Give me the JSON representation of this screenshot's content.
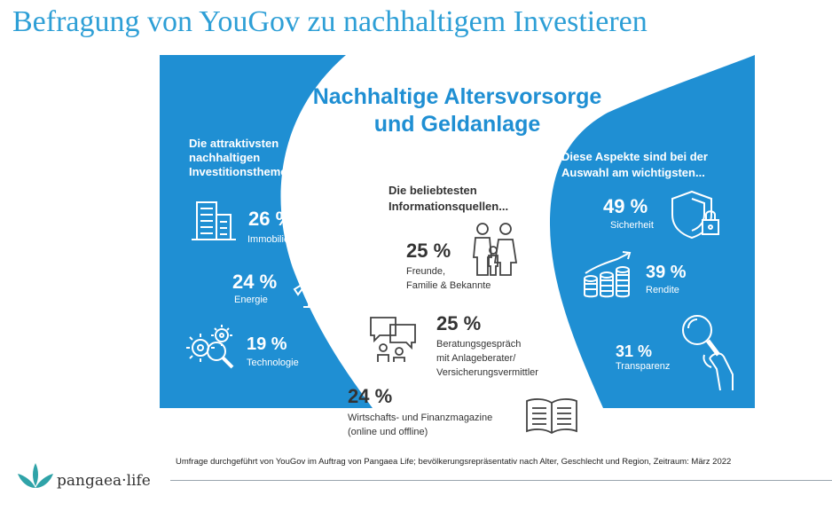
{
  "slide_title": "Befragung von YouGov zu nachhaltigem Investieren",
  "headline": {
    "line1": "Nachhaltige Altersvorsorge",
    "line2": "und Geldanlage"
  },
  "left": {
    "heading": [
      "Die attraktivsten",
      "nachhaltigen",
      "Investitionsthemen..."
    ],
    "items": [
      {
        "value": "26 %",
        "label": "Immobilien",
        "icon": "building-icon"
      },
      {
        "value": "24 %",
        "label": "Energie",
        "icon": "wind-turbine-icon"
      },
      {
        "value": "19 %",
        "label": "Technologie",
        "icon": "gears-magnifier-icon"
      }
    ]
  },
  "center": {
    "heading": [
      "Die beliebtesten",
      "Informationsquellen..."
    ],
    "items": [
      {
        "value": "25 %",
        "label_lines": [
          "Freunde,",
          "Familie & Bekannte"
        ],
        "icon": "family-icon"
      },
      {
        "value": "25 %",
        "label_lines": [
          "Beratungsgespräch",
          "mit Anlageberater/",
          "Versicherungsvermittler"
        ],
        "icon": "chat-people-icon"
      },
      {
        "value": "24 %",
        "label_lines": [
          "Wirtschafts- und Finanzmagazine",
          "(online und offline)"
        ],
        "icon": "open-book-icon"
      }
    ]
  },
  "right": {
    "heading": [
      "Diese Aspekte sind bei der",
      "Auswahl am wichtigsten..."
    ],
    "items": [
      {
        "value": "49 %",
        "label": "Sicherheit",
        "icon": "shield-lock-icon"
      },
      {
        "value": "39 %",
        "label": "Rendite",
        "icon": "coins-growth-icon"
      },
      {
        "value": "31 %",
        "label": "Transparenz",
        "icon": "magnifier-hand-icon"
      }
    ]
  },
  "footnote": "Umfrage durchgeführt von YouGov im Auftrag von Pangaea Life; bevölkerungsrepräsentativ nach Alter, Geschlecht und Region, Zeitraum: März 2022",
  "logo_text": "pangaea·life",
  "colors": {
    "brand_blue": "#1f8fd3",
    "title_blue": "#2e9fd6",
    "dark_text": "#333333",
    "logo_green": "#2fa3a8"
  }
}
